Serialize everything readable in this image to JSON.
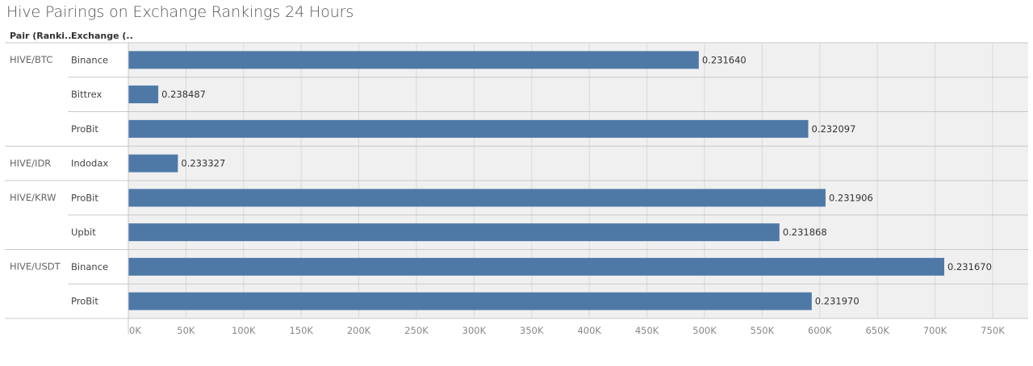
{
  "title": "Hive Pairings on Exchange Rankings 24 Hours",
  "headers": {
    "pair": "Pair (Ranki..",
    "exchange": "Exchange (.."
  },
  "colors": {
    "bar": "#4e79a7",
    "panel": "#f0f0f0",
    "rule": "#c8c8c8",
    "grid": "#d9d9d9"
  },
  "chart_data": {
    "type": "bar",
    "orientation": "horizontal",
    "title": "Hive Pairings on Exchange Rankings 24 Hours",
    "xlabel": "",
    "xlim": [
      0,
      750000
    ],
    "grid": true,
    "ticks": [
      "0K",
      "50K",
      "100K",
      "150K",
      "200K",
      "250K",
      "300K",
      "350K",
      "400K",
      "450K",
      "500K",
      "550K",
      "600K",
      "650K",
      "700K",
      "750K"
    ],
    "groups": [
      {
        "pair": "HIVE/BTC",
        "rows": [
          {
            "exchange": "Binance",
            "value": 495000,
            "label": "0.231640"
          },
          {
            "exchange": "Bittrex",
            "value": 26000,
            "label": "0.238487"
          },
          {
            "exchange": "ProBit",
            "value": 590000,
            "label": "0.232097"
          }
        ]
      },
      {
        "pair": "HIVE/IDR",
        "rows": [
          {
            "exchange": "Indodax",
            "value": 43000,
            "label": "0.233327"
          }
        ]
      },
      {
        "pair": "HIVE/KRW",
        "rows": [
          {
            "exchange": "ProBit",
            "value": 605000,
            "label": "0.231906"
          },
          {
            "exchange": "Upbit",
            "value": 565000,
            "label": "0.231868"
          }
        ]
      },
      {
        "pair": "HIVE/USDT",
        "rows": [
          {
            "exchange": "Binance",
            "value": 708000,
            "label": "0.231670"
          },
          {
            "exchange": "ProBit",
            "value": 593000,
            "label": "0.231970"
          }
        ]
      }
    ]
  }
}
